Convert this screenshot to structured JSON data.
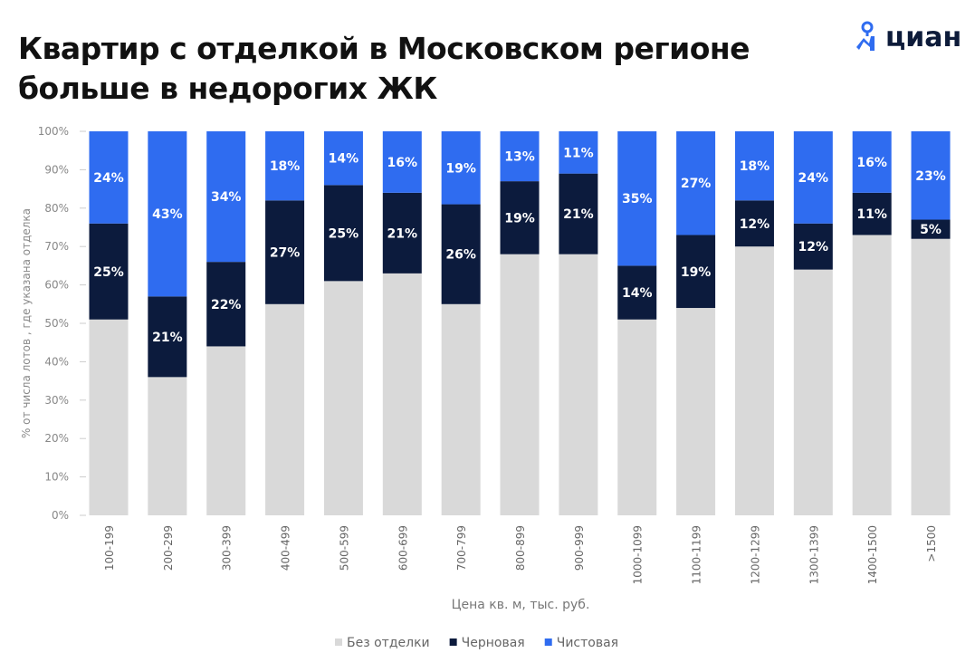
{
  "title_lines": [
    "Квартир с отделкой в Московском регионе",
    "больше в недорогих ЖК"
  ],
  "logo": {
    "text": "циан",
    "icon": "location-pin-person-icon"
  },
  "chart_data": {
    "type": "bar",
    "stacked": true,
    "xlabel": "Цена кв. м, тыс. руб.",
    "ylabel": "% от числа лотов , где указана отделка",
    "ylim": [
      0,
      100
    ],
    "yticks": [
      "0%",
      "10%",
      "20%",
      "30%",
      "40%",
      "50%",
      "60%",
      "70%",
      "80%",
      "90%",
      "100%"
    ],
    "categories": [
      "100-199",
      "200-299",
      "300-399",
      "400-499",
      "500-599",
      "600-699",
      "700-799",
      "800-899",
      "900-999",
      "1000-1099",
      "1100-1199",
      "1200-1299",
      "1300-1399",
      "1400-1500",
      ">1500"
    ],
    "series": [
      {
        "name": "Без отделки",
        "color": "#d9d9d9",
        "labels_shown": false,
        "values": [
          51,
          36,
          44,
          55,
          61,
          63,
          55,
          68,
          68,
          51,
          54,
          70,
          64,
          73,
          72
        ]
      },
      {
        "name": "Черновая",
        "color": "#0c1b3d",
        "labels_shown": true,
        "values": [
          25,
          21,
          22,
          27,
          25,
          21,
          26,
          19,
          21,
          14,
          19,
          12,
          12,
          11,
          5
        ]
      },
      {
        "name": "Чистовая",
        "color": "#2f6cf0",
        "labels_shown": true,
        "values": [
          24,
          43,
          34,
          18,
          14,
          16,
          19,
          13,
          11,
          35,
          27,
          18,
          24,
          16,
          23
        ]
      }
    ],
    "legend_position": "bottom",
    "grid": false
  }
}
